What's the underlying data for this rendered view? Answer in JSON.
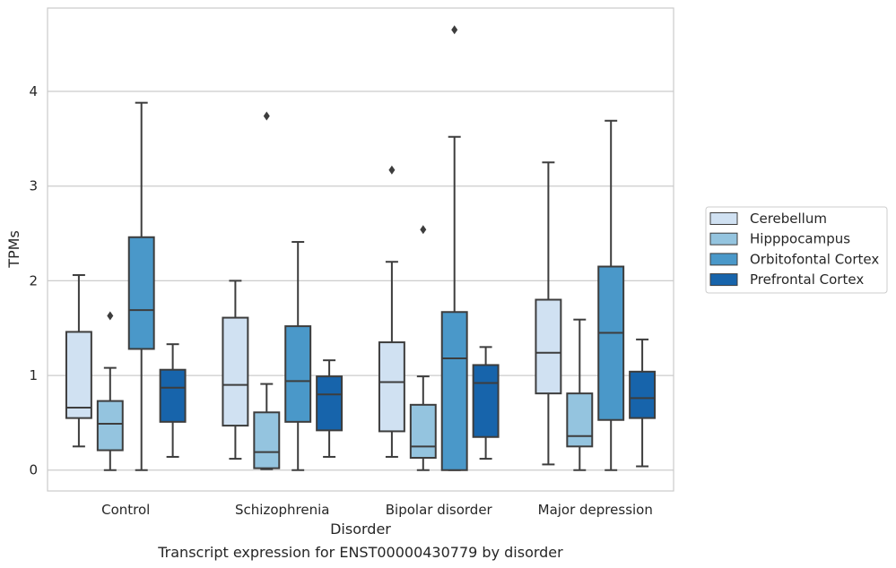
{
  "chart_data": {
    "type": "box",
    "title": "",
    "caption": "Transcript expression for ENST00000430779 by disorder",
    "xlabel": "Disorder",
    "ylabel": "TPMs",
    "ylim": [
      -0.22,
      4.88
    ],
    "yticks": [
      0,
      1,
      2,
      3,
      4
    ],
    "grid": "horizontal",
    "legend_position": "right",
    "categories": [
      "Control",
      "Schizophrenia",
      "Bipolar disorder",
      "Major depression"
    ],
    "series": [
      {
        "name": "Cerebellum",
        "color": "#d0e1f2",
        "boxes": [
          {
            "whisker_low": 0.25,
            "q1": 0.55,
            "median": 0.66,
            "q3": 1.46,
            "whisker_high": 2.06,
            "outliers": []
          },
          {
            "whisker_low": 0.12,
            "q1": 0.47,
            "median": 0.9,
            "q3": 1.61,
            "whisker_high": 2.0,
            "outliers": []
          },
          {
            "whisker_low": 0.14,
            "q1": 0.41,
            "median": 0.93,
            "q3": 1.35,
            "whisker_high": 2.2,
            "outliers": [
              3.17
            ]
          },
          {
            "whisker_low": 0.06,
            "q1": 0.81,
            "median": 1.24,
            "q3": 1.8,
            "whisker_high": 3.25,
            "outliers": []
          }
        ]
      },
      {
        "name": "Hipppocampus",
        "color": "#94c4df",
        "boxes": [
          {
            "whisker_low": 0.0,
            "q1": 0.21,
            "median": 0.49,
            "q3": 0.73,
            "whisker_high": 1.08,
            "outliers": [
              1.63
            ]
          },
          {
            "whisker_low": 0.01,
            "q1": 0.02,
            "median": 0.19,
            "q3": 0.61,
            "whisker_high": 0.91,
            "outliers": [
              3.74
            ]
          },
          {
            "whisker_low": 0.0,
            "q1": 0.13,
            "median": 0.25,
            "q3": 0.69,
            "whisker_high": 0.99,
            "outliers": [
              2.54
            ]
          },
          {
            "whisker_low": 0.0,
            "q1": 0.25,
            "median": 0.36,
            "q3": 0.81,
            "whisker_high": 1.59,
            "outliers": []
          }
        ]
      },
      {
        "name": "Orbitofontal Cortex",
        "color": "#4a98c9",
        "boxes": [
          {
            "whisker_low": 0.0,
            "q1": 1.28,
            "median": 1.69,
            "q3": 2.46,
            "whisker_high": 3.88,
            "outliers": []
          },
          {
            "whisker_low": 0.0,
            "q1": 0.51,
            "median": 0.94,
            "q3": 1.52,
            "whisker_high": 2.41,
            "outliers": []
          },
          {
            "whisker_low": 0.0,
            "q1": 0.0,
            "median": 1.18,
            "q3": 1.67,
            "whisker_high": 3.52,
            "outliers": [
              4.65
            ]
          },
          {
            "whisker_low": 0.0,
            "q1": 0.53,
            "median": 1.45,
            "q3": 2.15,
            "whisker_high": 3.69,
            "outliers": []
          }
        ]
      },
      {
        "name": "Prefrontal Cortex",
        "color": "#1764ab",
        "boxes": [
          {
            "whisker_low": 0.14,
            "q1": 0.51,
            "median": 0.87,
            "q3": 1.06,
            "whisker_high": 1.33,
            "outliers": []
          },
          {
            "whisker_low": 0.14,
            "q1": 0.42,
            "median": 0.8,
            "q3": 0.99,
            "whisker_high": 1.16,
            "outliers": []
          },
          {
            "whisker_low": 0.12,
            "q1": 0.35,
            "median": 0.92,
            "q3": 1.11,
            "whisker_high": 1.3,
            "outliers": []
          },
          {
            "whisker_low": 0.04,
            "q1": 0.55,
            "median": 0.76,
            "q3": 1.04,
            "whisker_high": 1.38,
            "outliers": []
          }
        ]
      }
    ]
  }
}
